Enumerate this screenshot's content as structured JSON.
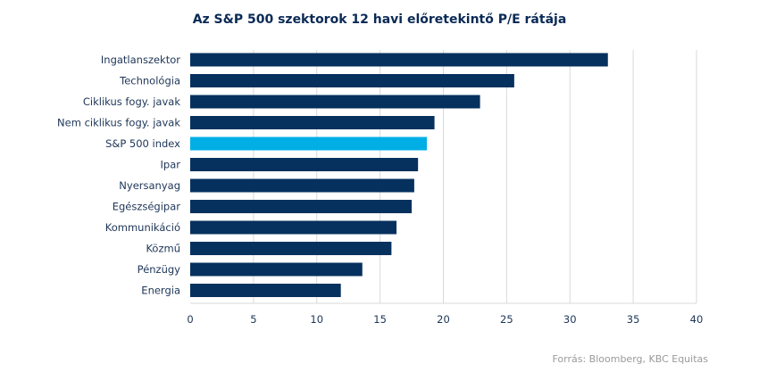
{
  "chart_data": {
    "type": "bar",
    "orientation": "horizontal",
    "title": "Az S&P 500 szektorok 12 havi előretekintő P/E rátája",
    "categories": [
      "Ingatlanszektor",
      "Technológia",
      "Ciklikus fogy. javak",
      "Nem ciklikus fogy. javak",
      "S&P 500 index",
      "Ipar",
      "Nyersanyag",
      "Egészségipar",
      "Kommunikáció",
      "Közmű",
      "Pénzügy",
      "Energia"
    ],
    "values": [
      33.0,
      25.6,
      22.9,
      19.3,
      18.7,
      18.0,
      17.7,
      17.5,
      16.3,
      15.9,
      13.6,
      11.9
    ],
    "highlight_category": "S&P 500 index",
    "xlim": [
      0,
      40
    ],
    "xticks": [
      0,
      5,
      10,
      15,
      20,
      25,
      30,
      35,
      40
    ],
    "xlabel": "",
    "ylabel": "",
    "grid": "vertical",
    "colors": {
      "bar": "#06315e",
      "highlight": "#00aee6",
      "grid": "#d9d9d9",
      "text": "#1d3557"
    }
  },
  "source_text": "Forrás: Bloomberg,  KBC Equitas"
}
